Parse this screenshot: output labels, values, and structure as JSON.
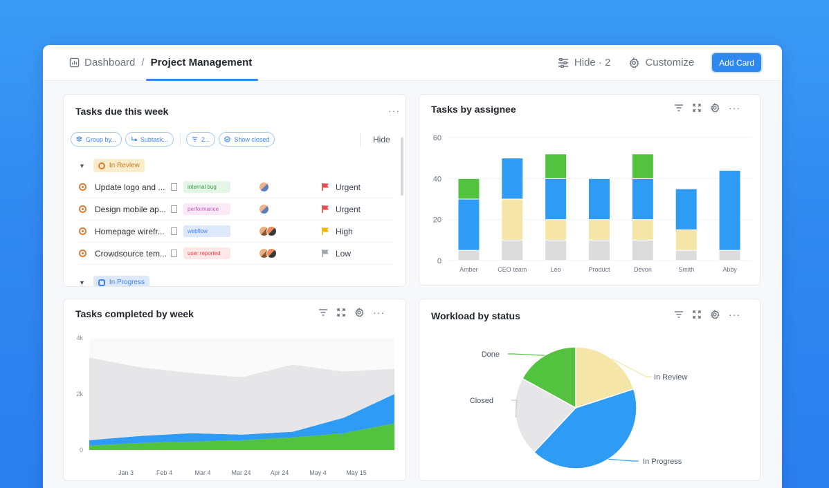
{
  "breadcrumb": {
    "home": "Dashboard",
    "separator": "/",
    "current": "Project Management"
  },
  "toolbar": {
    "hide": "Hide · 2",
    "customize": "Customize",
    "add_card": "Add Card"
  },
  "tasks_card": {
    "title": "Tasks due this week",
    "filters": {
      "group_by": "Group by...",
      "subtasks": "Subtask...",
      "filter_count": "2...",
      "show_closed": "Show closed"
    },
    "hide": "Hide",
    "groups": [
      {
        "label": "In Review",
        "tasks": [
          {
            "name": "Update logo and ...",
            "tag": "internal bug",
            "tag_bg": "#e4f6e6",
            "tag_color": "#3a9a48",
            "priority": "Urgent",
            "flag_color": "#e5484d"
          },
          {
            "name": "Design mobile ap...",
            "tag": "performance",
            "tag_bg": "#fbe9f8",
            "tag_color": "#c25bbf",
            "priority": "Urgent",
            "flag_color": "#e5484d"
          },
          {
            "name": "Homepage wirefr...",
            "tag": "webflow",
            "tag_bg": "#dde9fb",
            "tag_color": "#3b82f6",
            "priority": "High",
            "flag_color": "#f4b400"
          },
          {
            "name": "Crowdsource tem...",
            "tag": "user reported",
            "tag_bg": "#fde7e7",
            "tag_color": "#e04444",
            "priority": "Low",
            "flag_color": "#a0a6b0"
          }
        ]
      },
      {
        "label": "In Progress"
      }
    ]
  },
  "assignee_card": {
    "title": "Tasks by assignee",
    "chart_data": {
      "type": "bar",
      "stacked": true,
      "categories": [
        "Amber",
        "CEO team",
        "Leo",
        "Product",
        "Devon",
        "Smith",
        "Abby"
      ],
      "ylim": [
        0,
        60
      ],
      "yticks": [
        0,
        20,
        40,
        60
      ],
      "series": [
        {
          "color": "#dcdcdc",
          "values": [
            5,
            10,
            10,
            10,
            10,
            5,
            5
          ]
        },
        {
          "color": "#f5e6a8",
          "values": [
            0,
            20,
            10,
            10,
            10,
            10,
            0
          ]
        },
        {
          "color": "#2e9bf5",
          "values": [
            25,
            20,
            20,
            20,
            20,
            20,
            39
          ]
        },
        {
          "color": "#52c23f",
          "values": [
            10,
            0,
            12,
            0,
            12,
            0,
            0
          ]
        }
      ]
    }
  },
  "weekly_card": {
    "title": "Tasks completed by week",
    "chart_data": {
      "type": "area",
      "x": [
        "Jan 3",
        "Feb 4",
        "Mar 4",
        "Mar 24",
        "Apr 24",
        "May 4",
        "May 15"
      ],
      "ytick_labels": [
        "0",
        "2k",
        "4k"
      ],
      "ylim": [
        0,
        4000
      ],
      "series": [
        {
          "color": "#52c23f",
          "values": [
            150,
            250,
            300,
            350,
            450,
            600,
            950
          ]
        },
        {
          "color": "#2e9bf5",
          "values": [
            200,
            250,
            300,
            200,
            200,
            550,
            1050
          ]
        },
        {
          "color": "#e6e6e8",
          "values": [
            2950,
            2450,
            2150,
            2050,
            2400,
            1650,
            900
          ]
        }
      ]
    }
  },
  "workload_card": {
    "title": "Workload by status",
    "chart_data": {
      "type": "pie",
      "slices": [
        {
          "label": "In Review",
          "value": 20,
          "color": "#f5e6a8"
        },
        {
          "label": "In Progress",
          "value": 42,
          "color": "#2e9bf5"
        },
        {
          "label": "Closed",
          "value": 21,
          "color": "#e6e6e8"
        },
        {
          "label": "Done",
          "value": 17,
          "color": "#52c23f"
        }
      ]
    }
  }
}
